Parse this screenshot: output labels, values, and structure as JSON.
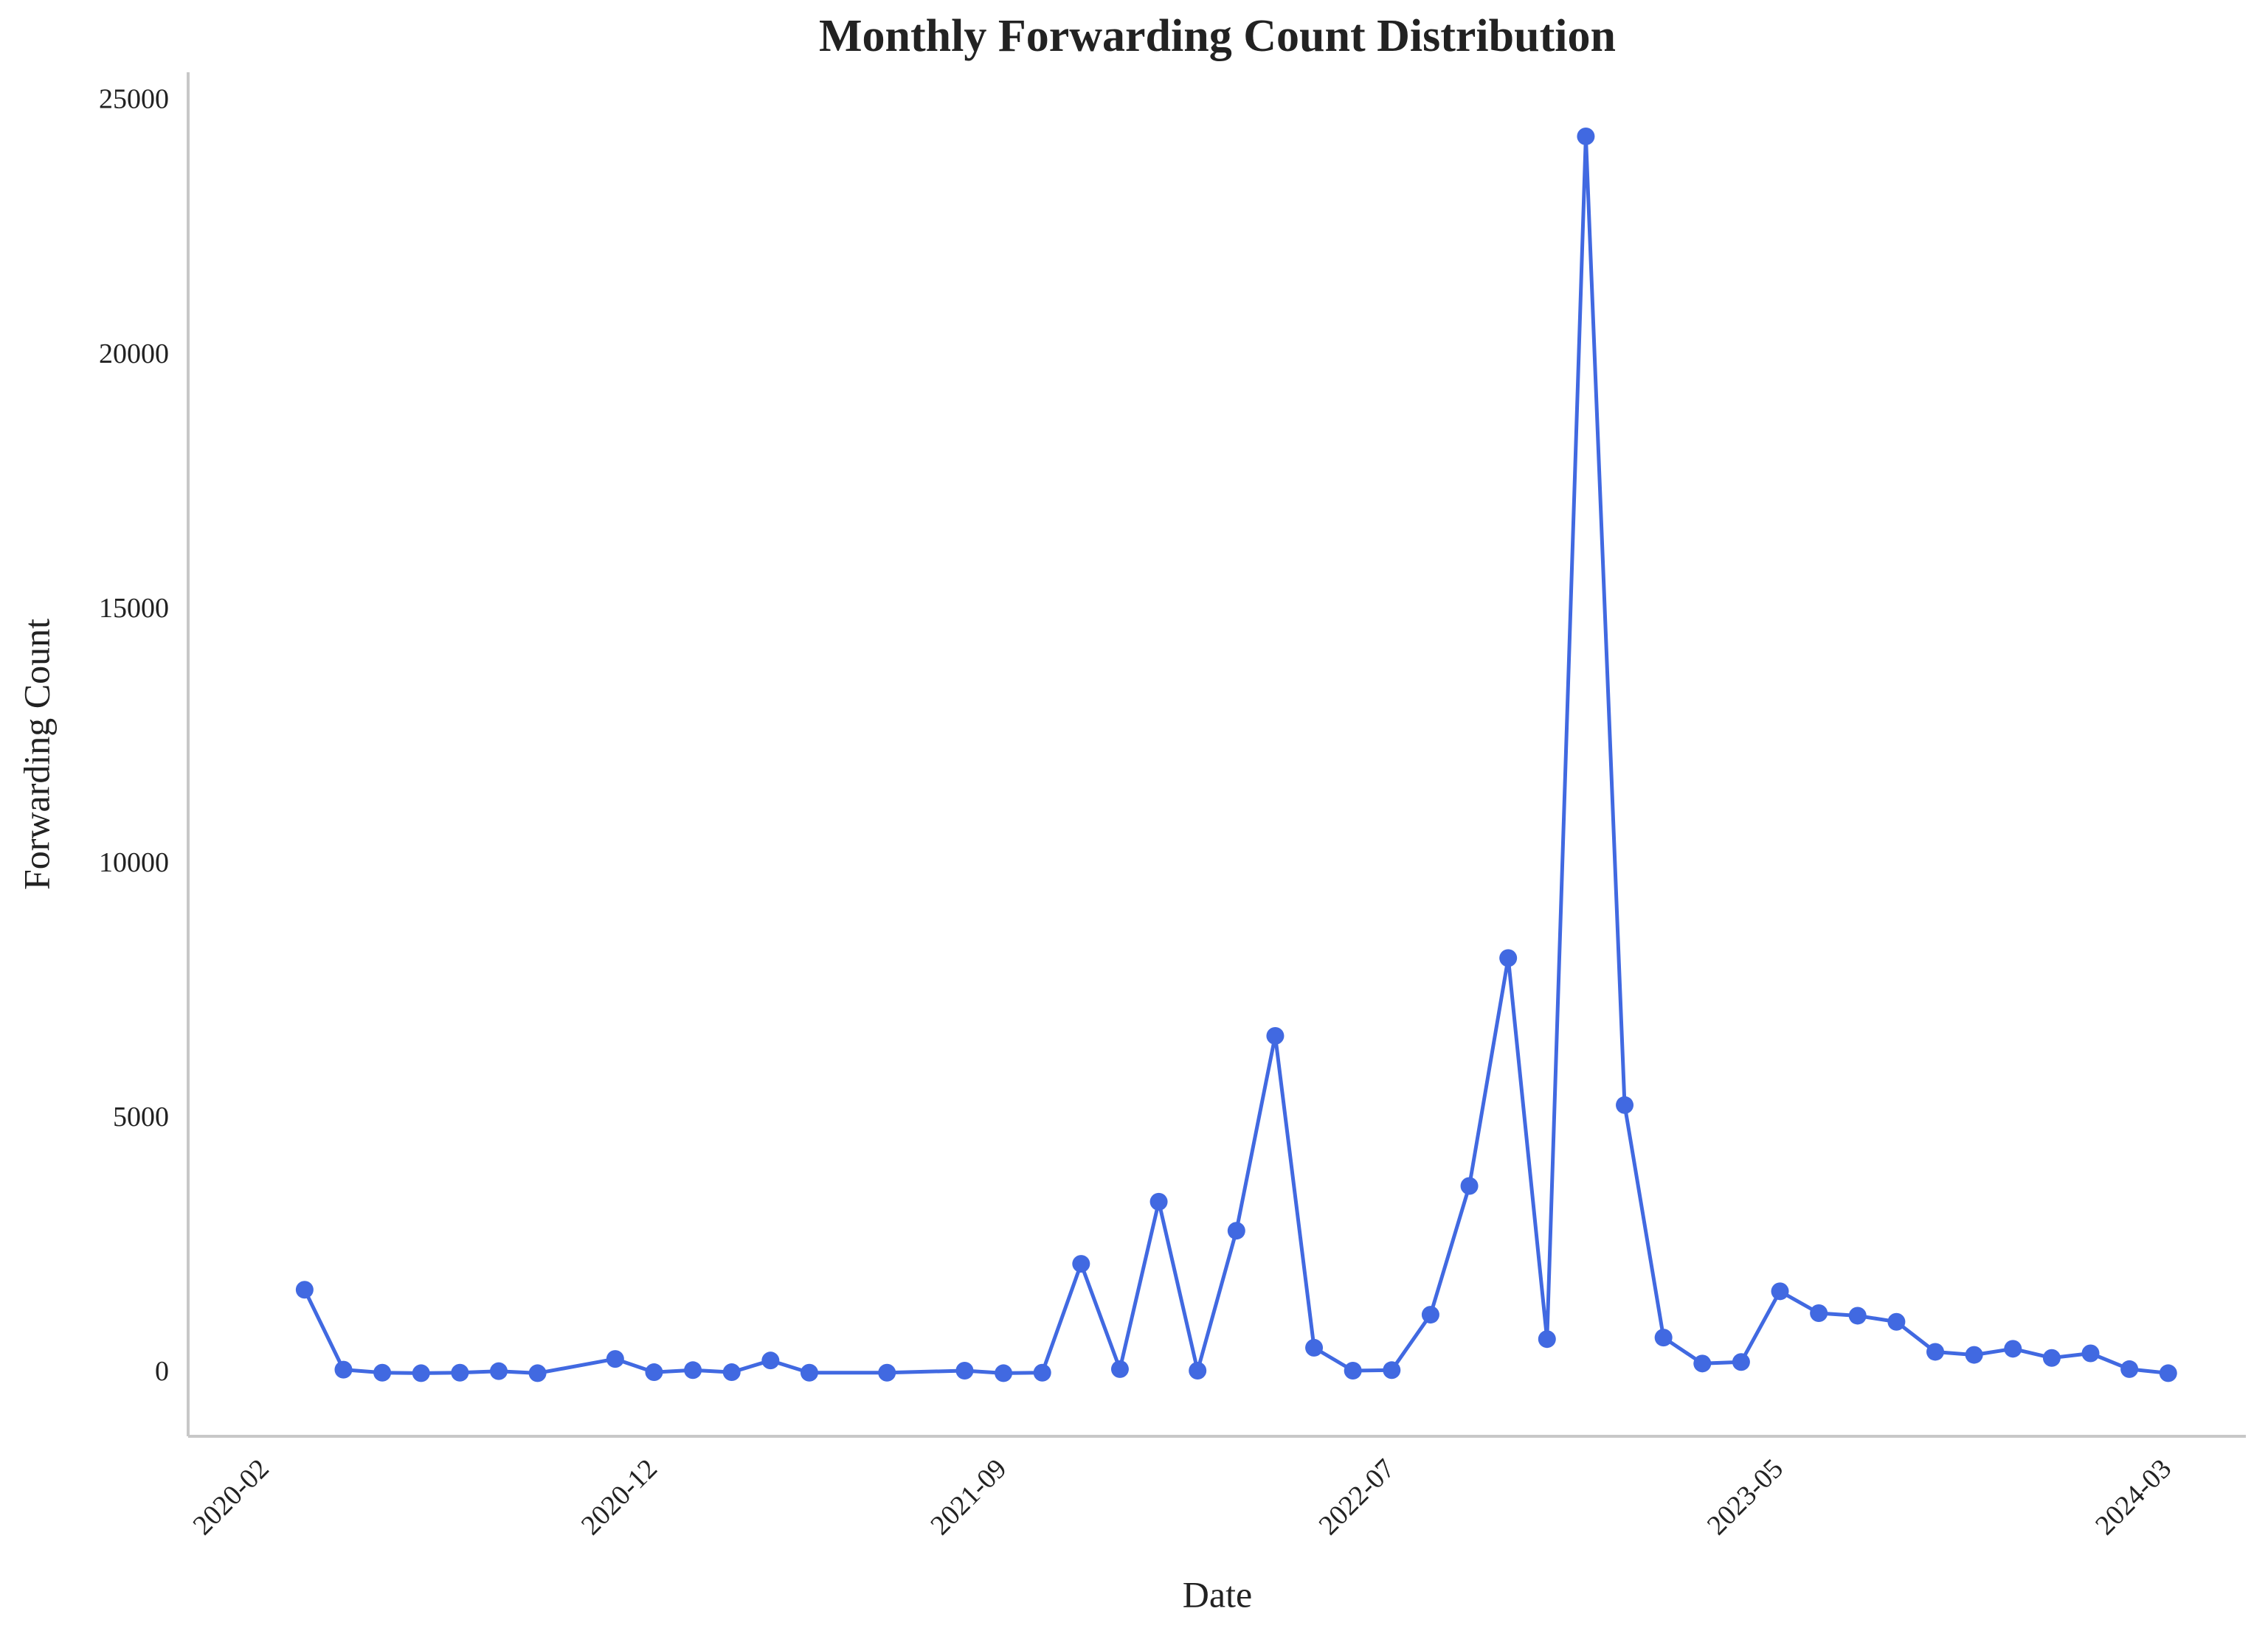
{
  "chart_data": {
    "type": "line",
    "title": "Monthly Forwarding Count Distribution",
    "x_label": "Date",
    "y_label": "Forwarding Count",
    "x": [
      "2020-03",
      "2020-04",
      "2020-05",
      "2020-06",
      "2020-07",
      "2020-08",
      "2020-09",
      "2020-11",
      "2020-12",
      "2021-01",
      "2021-02",
      "2021-03",
      "2021-04",
      "2021-06",
      "2021-08",
      "2021-09",
      "2021-10",
      "2021-11",
      "2021-12",
      "2022-01",
      "2022-02",
      "2022-03",
      "2022-04",
      "2022-05",
      "2022-06",
      "2022-07",
      "2022-08",
      "2022-09",
      "2022-10",
      "2022-11",
      "2022-12",
      "2023-01",
      "2023-02",
      "2023-03",
      "2023-04",
      "2023-05",
      "2023-06",
      "2023-07",
      "2023-08",
      "2023-09",
      "2023-10",
      "2023-11",
      "2023-12",
      "2024-01",
      "2024-02",
      "2024-03"
    ],
    "series": [
      {
        "name": "Forwarding Count",
        "color": "#4169e1",
        "values": [
          1650,
          80,
          20,
          10,
          20,
          50,
          10,
          290,
          30,
          70,
          30,
          260,
          20,
          20,
          60,
          10,
          20,
          2160,
          90,
          3380,
          60,
          2810,
          6640,
          510,
          60,
          70,
          1160,
          3690,
          8170,
          680,
          24320,
          5280,
          710,
          200,
          230,
          1620,
          1190,
          1140,
          1020,
          430,
          370,
          490,
          310,
          400,
          90,
          10
        ]
      }
    ],
    "xlim": [
      "2019-12",
      "2024-05"
    ],
    "xticks": [
      "2020-02",
      "2020-12",
      "2021-09",
      "2022-07",
      "2023-05",
      "2024-03"
    ],
    "ylim": [
      -1230,
      25580
    ],
    "yticks": [
      0,
      5000,
      10000,
      15000,
      20000,
      25000
    ],
    "grid": false
  }
}
